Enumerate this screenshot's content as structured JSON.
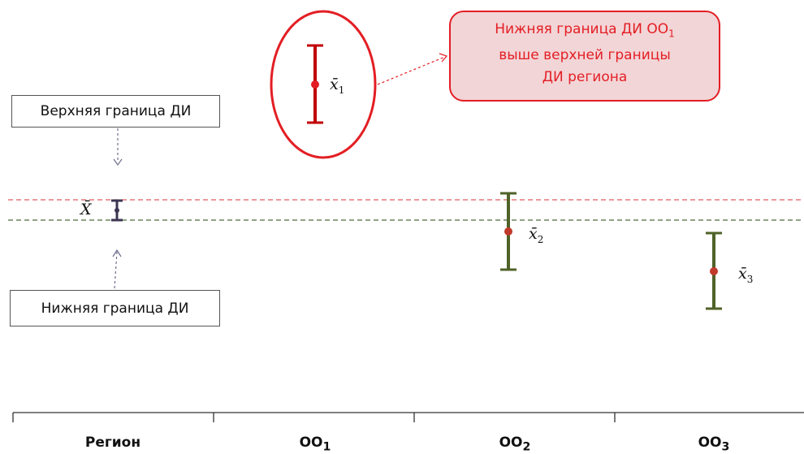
{
  "labels": {
    "upper_box": "Верхняя граница ДИ",
    "lower_box": "Нижняя граница ДИ",
    "callout_line1": "Нижняя граница ДИ ОО",
    "callout_line1_sub": "1",
    "callout_line2": "выше верхней границы",
    "callout_line3": "ДИ региона",
    "region_mean": "X̄"
  },
  "categories": [
    {
      "name": "Регион",
      "sub": ""
    },
    {
      "name": "ОО",
      "sub": "1"
    },
    {
      "name": "ОО",
      "sub": "2"
    },
    {
      "name": "ОО",
      "sub": "3"
    }
  ],
  "means": [
    {
      "symbol": "x̄",
      "sub": "1"
    },
    {
      "symbol": "x̄",
      "sub": "2"
    },
    {
      "symbol": "x̄",
      "sub": "3"
    }
  ],
  "colors": {
    "upper_line": "#e05a5f",
    "lower_line": "#4f6b3a",
    "highlight_red": "#c00000",
    "callout_border": "#e31e24",
    "callout_fill": "#f2d5d7",
    "green_bar": "#4f6228",
    "dot": "#c0392b",
    "region_bar": "#3d3552"
  }
}
